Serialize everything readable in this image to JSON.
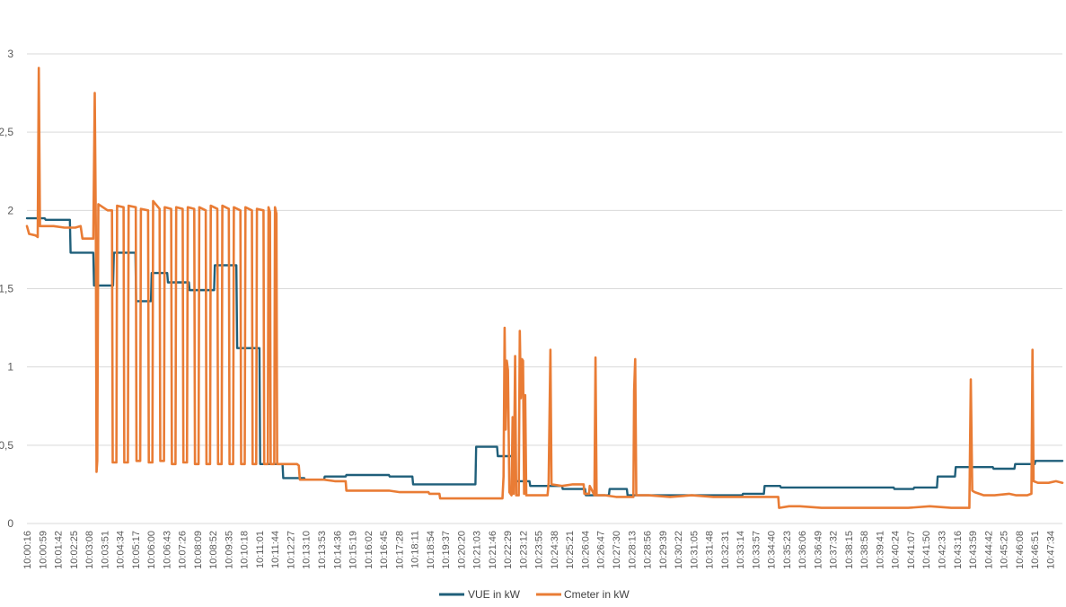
{
  "chart_data": {
    "type": "line",
    "title": "",
    "xlabel": "",
    "ylabel": "",
    "ylim": [
      0,
      3
    ],
    "y_ticks": [
      {
        "value": 0,
        "label": "0"
      },
      {
        "value": 0.5,
        "label": "0,5"
      },
      {
        "value": 1,
        "label": "1"
      },
      {
        "value": 1.5,
        "label": "1,5"
      },
      {
        "value": 2,
        "label": "2"
      },
      {
        "value": 2.5,
        "label": "2,5"
      },
      {
        "value": 3,
        "label": "3"
      }
    ],
    "grid": true,
    "legend_position": "bottom",
    "x_tick_labels": [
      "10:00:16",
      "10:00:59",
      "10:01:42",
      "10:02:25",
      "10:03:08",
      "10:03:51",
      "10:04:34",
      "10:05:17",
      "10:06:00",
      "10:06:43",
      "10:07:26",
      "10:08:09",
      "10:08:52",
      "10:09:35",
      "10:10:18",
      "10:11:01",
      "10:11:44",
      "10:12:27",
      "10:13:10",
      "10:13:53",
      "10:14:36",
      "10:15:19",
      "10:16:02",
      "10:16:45",
      "10:17:28",
      "10:18:11",
      "10:18:54",
      "10:19:37",
      "10:20:20",
      "10:21:03",
      "10:21:46",
      "10:22:29",
      "10:23:12",
      "10:23:55",
      "10:24:38",
      "10:25:21",
      "10:26:04",
      "10:26:47",
      "10:27:30",
      "10:28:13",
      "10:28:56",
      "10:29:39",
      "10:30:22",
      "10:31:05",
      "10:31:48",
      "10:32:31",
      "10:33:14",
      "10:33:57",
      "10:34:40",
      "10:35:23",
      "10:36:06",
      "10:36:49",
      "10:37:32",
      "10:38:15",
      "10:38:58",
      "10:39:41",
      "10:40:24",
      "10:41:07",
      "10:41:50",
      "10:42:33",
      "10:43:16",
      "10:43:59",
      "10:44:42",
      "10:45:25",
      "10:46:08",
      "10:46:51",
      "10:47:34"
    ],
    "x_range": [
      "10:00:16",
      "10:48:08"
    ],
    "series": [
      {
        "name": "VUE in kW",
        "color": "#1f5f7a",
        "points": [
          [
            "10:00:16",
            1.95
          ],
          [
            "10:01:05",
            1.95
          ],
          [
            "10:01:08",
            1.94
          ],
          [
            "10:02:15",
            1.94
          ],
          [
            "10:02:17",
            1.73
          ],
          [
            "10:03:20",
            1.73
          ],
          [
            "10:03:22",
            1.52
          ],
          [
            "10:04:15",
            1.52
          ],
          [
            "10:04:17",
            1.73
          ],
          [
            "10:05:17",
            1.73
          ],
          [
            "10:05:19",
            1.42
          ],
          [
            "10:06:00",
            1.42
          ],
          [
            "10:06:02",
            1.6
          ],
          [
            "10:06:45",
            1.6
          ],
          [
            "10:06:47",
            1.54
          ],
          [
            "10:07:45",
            1.54
          ],
          [
            "10:07:47",
            1.49
          ],
          [
            "10:08:55",
            1.49
          ],
          [
            "10:08:57",
            1.65
          ],
          [
            "10:09:57",
            1.65
          ],
          [
            "10:09:59",
            1.12
          ],
          [
            "10:11:01",
            1.12
          ],
          [
            "10:11:03",
            0.38
          ],
          [
            "10:12:05",
            0.38
          ],
          [
            "10:12:07",
            0.29
          ],
          [
            "10:13:05",
            0.29
          ],
          [
            "10:13:07",
            0.28
          ],
          [
            "10:14:00",
            0.28
          ],
          [
            "10:14:02",
            0.3
          ],
          [
            "10:15:00",
            0.3
          ],
          [
            "10:15:02",
            0.31
          ],
          [
            "10:17:00",
            0.31
          ],
          [
            "10:17:02",
            0.3
          ],
          [
            "10:18:05",
            0.3
          ],
          [
            "10:18:07",
            0.25
          ],
          [
            "10:21:00",
            0.25
          ],
          [
            "10:21:02",
            0.49
          ],
          [
            "10:22:00",
            0.49
          ],
          [
            "10:22:02",
            0.43
          ],
          [
            "10:22:50",
            0.43
          ],
          [
            "10:22:52",
            0.27
          ],
          [
            "10:23:30",
            0.27
          ],
          [
            "10:23:32",
            0.24
          ],
          [
            "10:25:00",
            0.24
          ],
          [
            "10:25:02",
            0.22
          ],
          [
            "10:26:04",
            0.22
          ],
          [
            "10:26:06",
            0.18
          ],
          [
            "10:27:10",
            0.18
          ],
          [
            "10:27:12",
            0.22
          ],
          [
            "10:28:00",
            0.22
          ],
          [
            "10:28:02",
            0.18
          ],
          [
            "10:33:20",
            0.18
          ],
          [
            "10:33:22",
            0.19
          ],
          [
            "10:34:20",
            0.19
          ],
          [
            "10:34:22",
            0.24
          ],
          [
            "10:35:05",
            0.24
          ],
          [
            "10:35:07",
            0.23
          ],
          [
            "10:40:20",
            0.23
          ],
          [
            "10:40:22",
            0.22
          ],
          [
            "10:41:15",
            0.22
          ],
          [
            "10:41:17",
            0.23
          ],
          [
            "10:42:20",
            0.23
          ],
          [
            "10:42:22",
            0.3
          ],
          [
            "10:43:10",
            0.3
          ],
          [
            "10:43:12",
            0.36
          ],
          [
            "10:44:55",
            0.36
          ],
          [
            "10:44:57",
            0.35
          ],
          [
            "10:45:55",
            0.35
          ],
          [
            "10:45:57",
            0.38
          ],
          [
            "10:46:51",
            0.38
          ],
          [
            "10:46:53",
            0.4
          ],
          [
            "10:48:08",
            0.4
          ]
        ]
      },
      {
        "name": "Cmeter in kW",
        "color": "#e97c35",
        "points": [
          [
            "10:00:16",
            1.9
          ],
          [
            "10:00:22",
            1.85
          ],
          [
            "10:00:40",
            1.84
          ],
          [
            "10:00:46",
            1.83
          ],
          [
            "10:00:49",
            2.91
          ],
          [
            "10:00:52",
            1.9
          ],
          [
            "10:01:30",
            1.9
          ],
          [
            "10:02:00",
            1.89
          ],
          [
            "10:02:30",
            1.89
          ],
          [
            "10:02:45",
            1.9
          ],
          [
            "10:02:50",
            1.82
          ],
          [
            "10:03:20",
            1.82
          ],
          [
            "10:03:24",
            2.75
          ],
          [
            "10:03:27",
            1.9
          ],
          [
            "10:03:29",
            0.33
          ],
          [
            "10:03:31",
            0.4
          ],
          [
            "10:03:34",
            2.04
          ],
          [
            "10:04:00",
            2.0
          ],
          [
            "10:04:12",
            2.0
          ],
          [
            "10:04:14",
            0.39
          ],
          [
            "10:04:24",
            0.39
          ],
          [
            "10:04:26",
            2.03
          ],
          [
            "10:04:44",
            2.02
          ],
          [
            "10:04:46",
            0.39
          ],
          [
            "10:04:56",
            0.39
          ],
          [
            "10:04:58",
            2.03
          ],
          [
            "10:05:18",
            2.02
          ],
          [
            "10:05:20",
            0.4
          ],
          [
            "10:05:30",
            0.4
          ],
          [
            "10:05:32",
            2.01
          ],
          [
            "10:05:52",
            2.0
          ],
          [
            "10:05:54",
            0.39
          ],
          [
            "10:06:04",
            0.39
          ],
          [
            "10:06:06",
            2.06
          ],
          [
            "10:06:24",
            2.01
          ],
          [
            "10:06:26",
            0.4
          ],
          [
            "10:06:36",
            0.4
          ],
          [
            "10:06:38",
            2.02
          ],
          [
            "10:06:56",
            2.01
          ],
          [
            "10:06:58",
            0.38
          ],
          [
            "10:07:08",
            0.38
          ],
          [
            "10:07:10",
            2.02
          ],
          [
            "10:07:28",
            2.01
          ],
          [
            "10:07:30",
            0.39
          ],
          [
            "10:07:40",
            0.39
          ],
          [
            "10:07:42",
            2.02
          ],
          [
            "10:08:00",
            2.01
          ],
          [
            "10:08:02",
            0.38
          ],
          [
            "10:08:12",
            0.38
          ],
          [
            "10:08:14",
            2.02
          ],
          [
            "10:08:32",
            2.0
          ],
          [
            "10:08:34",
            0.38
          ],
          [
            "10:08:44",
            0.38
          ],
          [
            "10:08:46",
            2.03
          ],
          [
            "10:09:04",
            2.01
          ],
          [
            "10:09:06",
            0.38
          ],
          [
            "10:09:16",
            0.38
          ],
          [
            "10:09:18",
            2.03
          ],
          [
            "10:09:36",
            2.01
          ],
          [
            "10:09:38",
            0.38
          ],
          [
            "10:09:48",
            0.38
          ],
          [
            "10:09:50",
            2.02
          ],
          [
            "10:10:08",
            2.0
          ],
          [
            "10:10:10",
            0.38
          ],
          [
            "10:10:20",
            0.38
          ],
          [
            "10:10:22",
            2.02
          ],
          [
            "10:10:40",
            2.0
          ],
          [
            "10:10:42",
            0.38
          ],
          [
            "10:10:52",
            0.38
          ],
          [
            "10:10:54",
            2.01
          ],
          [
            "10:11:12",
            2.0
          ],
          [
            "10:11:14",
            0.38
          ],
          [
            "10:11:24",
            0.38
          ],
          [
            "10:11:26",
            2.02
          ],
          [
            "10:11:30",
            1.99
          ],
          [
            "10:11:32",
            0.38
          ],
          [
            "10:11:42",
            0.38
          ],
          [
            "10:11:44",
            2.02
          ],
          [
            "10:11:48",
            1.98
          ],
          [
            "10:11:50",
            0.38
          ],
          [
            "10:12:45",
            0.38
          ],
          [
            "10:12:50",
            0.37
          ],
          [
            "10:12:53",
            0.28
          ],
          [
            "10:13:40",
            0.28
          ],
          [
            "10:14:00",
            0.28
          ],
          [
            "10:14:30",
            0.27
          ],
          [
            "10:15:00",
            0.27
          ],
          [
            "10:15:02",
            0.21
          ],
          [
            "10:16:00",
            0.21
          ],
          [
            "10:17:00",
            0.21
          ],
          [
            "10:17:30",
            0.2
          ],
          [
            "10:18:00",
            0.2
          ],
          [
            "10:18:50",
            0.2
          ],
          [
            "10:18:52",
            0.19
          ],
          [
            "10:19:20",
            0.19
          ],
          [
            "10:19:22",
            0.16
          ],
          [
            "10:21:00",
            0.16
          ],
          [
            "10:22:15",
            0.16
          ],
          [
            "10:22:18",
            0.3
          ],
          [
            "10:22:21",
            1.25
          ],
          [
            "10:22:24",
            0.6
          ],
          [
            "10:22:27",
            1.04
          ],
          [
            "10:22:30",
            0.98
          ],
          [
            "10:22:34",
            0.2
          ],
          [
            "10:22:40",
            0.18
          ],
          [
            "10:22:43",
            0.68
          ],
          [
            "10:22:46",
            0.19
          ],
          [
            "10:22:50",
            1.07
          ],
          [
            "10:22:53",
            0.18
          ],
          [
            "10:23:00",
            0.18
          ],
          [
            "10:23:03",
            1.23
          ],
          [
            "10:23:06",
            0.8
          ],
          [
            "10:23:09",
            1.05
          ],
          [
            "10:23:12",
            1.04
          ],
          [
            "10:23:15",
            0.19
          ],
          [
            "10:23:18",
            0.82
          ],
          [
            "10:23:21",
            0.18
          ],
          [
            "10:24:00",
            0.18
          ],
          [
            "10:24:20",
            0.18
          ],
          [
            "10:24:23",
            0.26
          ],
          [
            "10:24:28",
            1.11
          ],
          [
            "10:24:31",
            0.25
          ],
          [
            "10:25:00",
            0.24
          ],
          [
            "10:25:30",
            0.25
          ],
          [
            "10:26:00",
            0.25
          ],
          [
            "10:26:02",
            0.19
          ],
          [
            "10:26:15",
            0.19
          ],
          [
            "10:26:17",
            0.24
          ],
          [
            "10:26:30",
            0.18
          ],
          [
            "10:26:33",
            1.06
          ],
          [
            "10:26:36",
            0.18
          ],
          [
            "10:27:00",
            0.18
          ],
          [
            "10:27:30",
            0.17
          ],
          [
            "10:28:00",
            0.17
          ],
          [
            "10:28:18",
            0.17
          ],
          [
            "10:28:20",
            0.85
          ],
          [
            "10:28:23",
            1.05
          ],
          [
            "10:28:26",
            0.18
          ],
          [
            "10:29:00",
            0.18
          ],
          [
            "10:30:00",
            0.17
          ],
          [
            "10:31:00",
            0.18
          ],
          [
            "10:32:00",
            0.17
          ],
          [
            "10:33:00",
            0.17
          ],
          [
            "10:34:00",
            0.17
          ],
          [
            "10:35:00",
            0.17
          ],
          [
            "10:35:02",
            0.1
          ],
          [
            "10:35:30",
            0.11
          ],
          [
            "10:36:00",
            0.11
          ],
          [
            "10:37:00",
            0.1
          ],
          [
            "10:38:00",
            0.1
          ],
          [
            "10:39:00",
            0.1
          ],
          [
            "10:40:00",
            0.1
          ],
          [
            "10:41:00",
            0.1
          ],
          [
            "10:42:00",
            0.11
          ],
          [
            "10:43:00",
            0.1
          ],
          [
            "10:43:45",
            0.1
          ],
          [
            "10:43:50",
            0.1
          ],
          [
            "10:43:54",
            0.92
          ],
          [
            "10:43:58",
            0.21
          ],
          [
            "10:44:05",
            0.2
          ],
          [
            "10:44:30",
            0.18
          ],
          [
            "10:45:00",
            0.18
          ],
          [
            "10:45:40",
            0.19
          ],
          [
            "10:46:00",
            0.18
          ],
          [
            "10:46:30",
            0.18
          ],
          [
            "10:46:42",
            0.19
          ],
          [
            "10:46:45",
            1.11
          ],
          [
            "10:46:48",
            0.27
          ],
          [
            "10:47:00",
            0.26
          ],
          [
            "10:47:30",
            0.26
          ],
          [
            "10:47:50",
            0.27
          ],
          [
            "10:48:08",
            0.26
          ]
        ]
      }
    ]
  }
}
